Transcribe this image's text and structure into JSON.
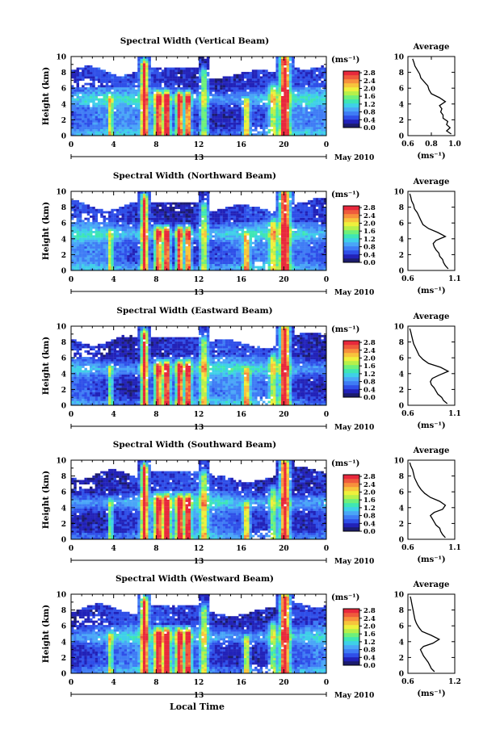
{
  "figure": {
    "xlabel": "Local Time",
    "day_label": "13",
    "month_label": "May 2010",
    "colorbar_unit": "(ms⁻¹)",
    "avg_title": "Average",
    "avg_xlabel": "(ms⁻¹)",
    "colorbar_colors": [
      "#1c1c6e",
      "#2222b8",
      "#2f4fe8",
      "#3f7cf5",
      "#4aa6f7",
      "#3fd0e8",
      "#3fe6b4",
      "#6ff07a",
      "#b6f04a",
      "#eef03c",
      "#f7c43c",
      "#f7903c",
      "#ef5a3c",
      "#e8283c"
    ]
  },
  "chart_data": [
    {
      "type": "heatmap",
      "title": "Spectral Width (Vertical Beam)",
      "ylabel": "Height (km)",
      "xlim": [
        0,
        24
      ],
      "ylim": [
        0,
        10
      ],
      "xticks": [
        "0",
        "4",
        "8",
        "12",
        "16",
        "20",
        "0"
      ],
      "yticks": [
        "0",
        "2",
        "4",
        "6",
        "8",
        "10"
      ],
      "colorbar": {
        "ticks": [
          "0.0",
          "0.4",
          "0.8",
          "1.2",
          "1.6",
          "2.0",
          "2.4",
          "2.8"
        ],
        "range": [
          0,
          2.8
        ]
      },
      "average": {
        "xlim": [
          0.6,
          1.0
        ],
        "xticks": [
          "0.6",
          "0.8",
          "1.0"
        ],
        "yticks": [
          "0",
          "2",
          "4",
          "6",
          "8",
          "10"
        ],
        "profile": [
          [
            0.97,
            0.2
          ],
          [
            0.93,
            0.6
          ],
          [
            0.96,
            1.0
          ],
          [
            0.93,
            1.4
          ],
          [
            0.94,
            1.8
          ],
          [
            0.9,
            2.2
          ],
          [
            0.9,
            2.6
          ],
          [
            0.88,
            3.0
          ],
          [
            0.89,
            3.4
          ],
          [
            0.87,
            3.8
          ],
          [
            0.92,
            4.3
          ],
          [
            0.87,
            4.8
          ],
          [
            0.8,
            5.3
          ],
          [
            0.78,
            5.8
          ],
          [
            0.77,
            6.3
          ],
          [
            0.74,
            6.8
          ],
          [
            0.71,
            7.3
          ],
          [
            0.7,
            7.8
          ],
          [
            0.68,
            8.3
          ],
          [
            0.66,
            8.8
          ],
          [
            0.65,
            9.3
          ],
          [
            0.64,
            9.7
          ]
        ]
      }
    },
    {
      "type": "heatmap",
      "title": "Spectral Width (Northward Beam)",
      "ylabel": "Height (km)",
      "xlim": [
        0,
        24
      ],
      "ylim": [
        0,
        10
      ],
      "xticks": [
        "0",
        "4",
        "8",
        "12",
        "16",
        "20",
        "0"
      ],
      "yticks": [
        "0",
        "2",
        "4",
        "6",
        "8",
        "10"
      ],
      "colorbar": {
        "ticks": [
          "0.0",
          "0.4",
          "0.8",
          "1.2",
          "1.6",
          "2.0",
          "2.4",
          "2.8"
        ],
        "range": [
          0,
          2.8
        ]
      },
      "average": {
        "xlim": [
          0.6,
          1.1
        ],
        "xticks": [
          "0.6",
          "1.1"
        ],
        "yticks": [
          "0",
          "2",
          "4",
          "6",
          "8",
          "10"
        ],
        "profile": [
          [
            1.03,
            0.2
          ],
          [
            1.0,
            0.6
          ],
          [
            0.98,
            1.0
          ],
          [
            0.97,
            1.4
          ],
          [
            0.94,
            1.8
          ],
          [
            0.93,
            2.2
          ],
          [
            0.9,
            2.6
          ],
          [
            0.88,
            3.0
          ],
          [
            0.87,
            3.4
          ],
          [
            0.9,
            3.8
          ],
          [
            1.0,
            4.3
          ],
          [
            0.92,
            4.8
          ],
          [
            0.82,
            5.3
          ],
          [
            0.76,
            5.8
          ],
          [
            0.74,
            6.3
          ],
          [
            0.72,
            6.8
          ],
          [
            0.7,
            7.3
          ],
          [
            0.67,
            7.8
          ],
          [
            0.66,
            8.3
          ],
          [
            0.64,
            8.8
          ],
          [
            0.63,
            9.3
          ],
          [
            0.62,
            9.7
          ]
        ]
      }
    },
    {
      "type": "heatmap",
      "title": "Spectral Width (Eastward Beam)",
      "ylabel": "Height (km)",
      "xlim": [
        0,
        24
      ],
      "ylim": [
        0,
        10
      ],
      "xticks": [
        "0",
        "4",
        "8",
        "12",
        "16",
        "20",
        "0"
      ],
      "yticks": [
        "0",
        "2",
        "4",
        "6",
        "8",
        "10"
      ],
      "colorbar": {
        "ticks": [
          "0.0",
          "0.4",
          "0.8",
          "1.2",
          "1.6",
          "2.0",
          "2.4",
          "2.8"
        ],
        "range": [
          0,
          2.8
        ]
      },
      "average": {
        "xlim": [
          0.6,
          1.1
        ],
        "xticks": [
          "0.6",
          "1.1"
        ],
        "yticks": [
          "0",
          "2",
          "4",
          "6",
          "8",
          "10"
        ],
        "profile": [
          [
            1.02,
            0.2
          ],
          [
            0.98,
            0.6
          ],
          [
            0.96,
            1.0
          ],
          [
            0.92,
            1.4
          ],
          [
            0.9,
            1.8
          ],
          [
            0.88,
            2.2
          ],
          [
            0.85,
            2.6
          ],
          [
            0.84,
            3.0
          ],
          [
            0.86,
            3.4
          ],
          [
            0.93,
            3.8
          ],
          [
            1.03,
            4.3
          ],
          [
            0.95,
            4.8
          ],
          [
            0.82,
            5.3
          ],
          [
            0.76,
            5.8
          ],
          [
            0.72,
            6.3
          ],
          [
            0.7,
            6.8
          ],
          [
            0.68,
            7.3
          ],
          [
            0.66,
            7.8
          ],
          [
            0.65,
            8.3
          ],
          [
            0.64,
            8.8
          ],
          [
            0.63,
            9.3
          ],
          [
            0.62,
            9.7
          ]
        ]
      }
    },
    {
      "type": "heatmap",
      "title": "Spectral Width (Southward Beam)",
      "ylabel": "Height (km)",
      "xlim": [
        0,
        24
      ],
      "ylim": [
        0,
        10
      ],
      "xticks": [
        "0",
        "4",
        "8",
        "12",
        "16",
        "20",
        "0"
      ],
      "yticks": [
        "0",
        "2",
        "4",
        "6",
        "8",
        "10"
      ],
      "colorbar": {
        "ticks": [
          "0.0",
          "0.4",
          "0.8",
          "1.2",
          "1.6",
          "2.0",
          "2.4",
          "2.8"
        ],
        "range": [
          0,
          2.8
        ]
      },
      "average": {
        "xlim": [
          0.6,
          1.1
        ],
        "xticks": [
          "0.6",
          "1.1"
        ],
        "yticks": [
          "0",
          "2",
          "4",
          "6",
          "8",
          "10"
        ],
        "profile": [
          [
            1.0,
            0.2
          ],
          [
            0.97,
            0.6
          ],
          [
            0.95,
            1.0
          ],
          [
            0.94,
            1.4
          ],
          [
            0.9,
            1.8
          ],
          [
            0.88,
            2.2
          ],
          [
            0.86,
            2.6
          ],
          [
            0.84,
            3.0
          ],
          [
            0.88,
            3.4
          ],
          [
            0.97,
            3.8
          ],
          [
            1.0,
            4.3
          ],
          [
            0.94,
            4.8
          ],
          [
            0.84,
            5.3
          ],
          [
            0.78,
            5.8
          ],
          [
            0.74,
            6.3
          ],
          [
            0.71,
            6.8
          ],
          [
            0.69,
            7.3
          ],
          [
            0.67,
            7.8
          ],
          [
            0.66,
            8.3
          ],
          [
            0.65,
            8.8
          ],
          [
            0.63,
            9.3
          ],
          [
            0.62,
            9.7
          ]
        ]
      }
    },
    {
      "type": "heatmap",
      "title": "Spectral Width (Westward Beam)",
      "ylabel": "Height (km)",
      "xlim": [
        0,
        24
      ],
      "ylim": [
        0,
        10
      ],
      "xticks": [
        "0",
        "4",
        "8",
        "12",
        "16",
        "20",
        "0"
      ],
      "yticks": [
        "0",
        "2",
        "4",
        "6",
        "8",
        "10"
      ],
      "colorbar": {
        "ticks": [
          "0.0",
          "0.4",
          "0.8",
          "1.2",
          "1.6",
          "2.0",
          "2.4",
          "2.8"
        ],
        "range": [
          0,
          2.8
        ]
      },
      "average": {
        "xlim": [
          0.6,
          1.2
        ],
        "xticks": [
          "0.6",
          "1.2"
        ],
        "yticks": [
          "0",
          "2",
          "4",
          "6",
          "8",
          "10"
        ],
        "profile": [
          [
            0.94,
            0.2
          ],
          [
            0.9,
            0.6
          ],
          [
            0.88,
            1.0
          ],
          [
            0.86,
            1.4
          ],
          [
            0.83,
            1.8
          ],
          [
            0.8,
            2.2
          ],
          [
            0.78,
            2.6
          ],
          [
            0.76,
            3.0
          ],
          [
            0.8,
            3.4
          ],
          [
            0.92,
            3.8
          ],
          [
            1.0,
            4.3
          ],
          [
            0.9,
            4.8
          ],
          [
            0.78,
            5.3
          ],
          [
            0.74,
            5.8
          ],
          [
            0.71,
            6.3
          ],
          [
            0.69,
            6.8
          ],
          [
            0.68,
            7.3
          ],
          [
            0.67,
            7.8
          ],
          [
            0.66,
            8.3
          ],
          [
            0.65,
            8.8
          ],
          [
            0.64,
            9.3
          ],
          [
            0.63,
            9.7
          ]
        ]
      }
    }
  ]
}
